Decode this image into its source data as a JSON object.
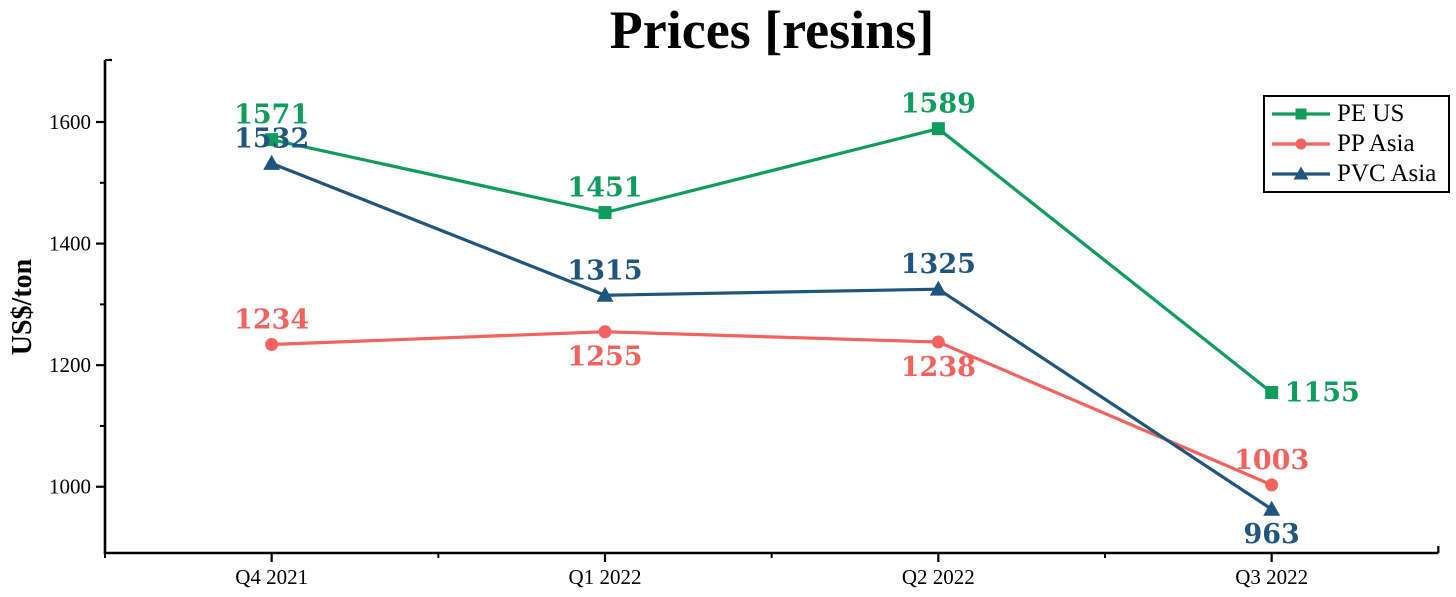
{
  "chart_data": {
    "type": "line",
    "title": "Prices [resins]",
    "ylabel": "US$/ton",
    "xlabel": "",
    "categories": [
      "Q4 2021",
      "Q1 2022",
      "Q2 2022",
      "Q3 2022"
    ],
    "series": [
      {
        "name": "PE US",
        "color": "#0f9c5d",
        "marker": "square",
        "values": [
          1571,
          1451,
          1589,
          1155
        ],
        "label_positions": [
          "above",
          "above",
          "above",
          "right"
        ]
      },
      {
        "name": "PP Asia",
        "color": "#f4625e",
        "marker": "circle",
        "values": [
          1234,
          1255,
          1238,
          1003
        ],
        "label_positions": [
          "above",
          "below",
          "below",
          "above"
        ]
      },
      {
        "name": "PVC Asia",
        "color": "#20567e",
        "marker": "triangle",
        "values": [
          1532,
          1315,
          1325,
          963
        ],
        "label_positions": [
          "above",
          "above",
          "above",
          "below"
        ]
      }
    ],
    "y_axis": {
      "ticks": [
        1000,
        1200,
        1400,
        1600
      ],
      "minor_ticks": [
        1100,
        1300,
        1500
      ],
      "range": [
        891,
        1702
      ]
    },
    "grid": false,
    "legend_position": "top-right",
    "axis_color": "#000000"
  }
}
